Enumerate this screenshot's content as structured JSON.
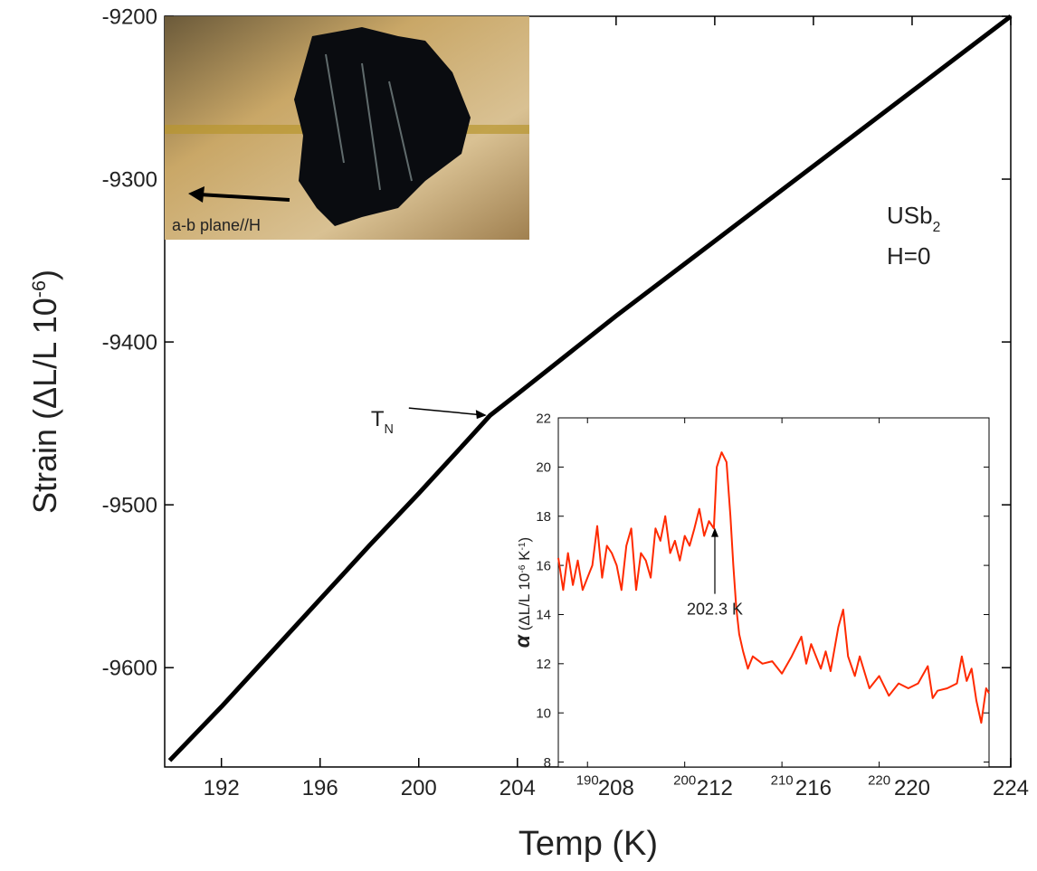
{
  "chart_data": [
    {
      "type": "line",
      "xlabel": "Temp (K)",
      "ylabel": [
        {
          "t": "Strain (ΔL/L 10"
        },
        {
          "t": "-6",
          "pos": "sup"
        },
        {
          "t": ")"
        }
      ],
      "xlim": [
        189.7,
        224
      ],
      "xticks": [
        192,
        196,
        200,
        204,
        208,
        212,
        216,
        220,
        224
      ],
      "ylim": [
        -9661,
        -9200
      ],
      "yticks": [
        -9200,
        -9300,
        -9400,
        -9500,
        -9600
      ],
      "x": [
        189.9,
        192,
        194,
        196,
        198,
        200,
        202,
        202.9,
        204,
        206,
        208,
        210,
        212,
        214,
        216,
        218,
        220,
        222,
        224
      ],
      "series": [
        {
          "color": "#000000",
          "values": [
            -9657,
            -9624,
            -9591,
            -9558,
            -9525,
            -9493,
            -9460,
            -9445,
            -9432,
            -9408,
            -9384,
            -9361,
            -9338,
            -9315,
            -9292,
            -9269,
            -9246,
            -9223,
            -9200
          ]
        }
      ],
      "annotations": [
        {
          "parts": [
            {
              "t": "T"
            },
            {
              "t": "N",
              "pos": "sub"
            }
          ],
          "x": 202.9,
          "y": -9445
        },
        {
          "parts": [
            {
              "t": "USb"
            },
            {
              "t": "2",
              "pos": "sub"
            }
          ]
        },
        {
          "parts": [
            {
              "t": "H=0"
            }
          ]
        }
      ]
    },
    {
      "type": "line",
      "ylabel": [
        {
          "t": "α",
          "pos": "big"
        },
        {
          "t": " (ΔL/L 10"
        },
        {
          "t": "-6",
          "pos": "sup"
        },
        {
          "t": " K"
        },
        {
          "t": "-1",
          "pos": "sup"
        },
        {
          "t": ")"
        }
      ],
      "xlim": [
        187,
        231.3
      ],
      "xticks": [
        190,
        200,
        210,
        220
      ],
      "ylim": [
        7.8,
        22
      ],
      "yticks": [
        8,
        10,
        12,
        14,
        16,
        18,
        20,
        22
      ],
      "x": [
        187,
        187.5,
        188,
        188.5,
        189,
        189.5,
        190,
        190.5,
        191,
        191.5,
        192,
        192.5,
        193,
        193.5,
        194,
        194.5,
        195,
        195.5,
        196,
        196.5,
        197,
        197.5,
        198,
        198.5,
        199,
        199.5,
        200,
        200.5,
        201,
        201.5,
        202,
        202.5,
        203,
        203.3,
        203.8,
        204.3,
        204.7,
        205,
        205.3,
        205.6,
        206,
        206.5,
        207,
        208,
        209,
        210,
        211,
        212,
        212.5,
        213,
        214,
        214.5,
        215,
        215.8,
        216.3,
        216.8,
        217.5,
        218,
        219,
        220,
        221,
        222,
        223,
        224,
        225,
        225.5,
        226,
        227,
        228,
        228.5,
        229,
        229.5,
        230,
        230.5,
        231,
        231.3
      ],
      "series": [
        {
          "color": "#ff2a00",
          "values": [
            16.3,
            15,
            16.5,
            15.2,
            16.2,
            15,
            15.5,
            16,
            17.6,
            15.5,
            16.8,
            16.5,
            16,
            15,
            16.8,
            17.5,
            15,
            16.5,
            16.2,
            15.5,
            17.5,
            17,
            18,
            16.5,
            17,
            16.2,
            17.2,
            16.8,
            17.5,
            18.3,
            17.2,
            17.8,
            17.5,
            20,
            20.6,
            20.2,
            18,
            16,
            14.3,
            13.2,
            12.5,
            11.8,
            12.3,
            12,
            12.1,
            11.6,
            12.3,
            13.1,
            12,
            12.8,
            11.8,
            12.5,
            11.7,
            13.5,
            14.2,
            12.3,
            11.5,
            12.3,
            11,
            11.5,
            10.7,
            11.2,
            11,
            11.2,
            11.9,
            10.6,
            10.9,
            11,
            11.2,
            12.3,
            11.3,
            11.8,
            10.5,
            9.6,
            11,
            10.8
          ]
        }
      ],
      "annotations": [
        {
          "parts": [
            {
              "t": "202.3 K"
            }
          ],
          "x": 203.1,
          "y": 17.6
        }
      ]
    }
  ],
  "inset_photo": {
    "label": "a-b plane//H"
  }
}
